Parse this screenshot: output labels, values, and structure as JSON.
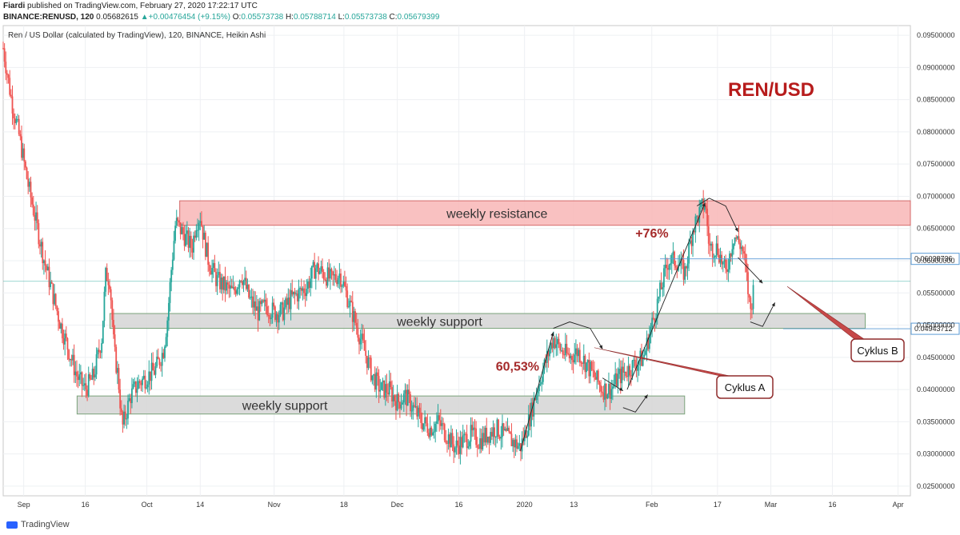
{
  "header": {
    "author": "Fiardi",
    "published_text": "published on TradingView.com, February 27, 2020 17:22:17 UTC",
    "symbol": "BINANCE:RENUSD, 120",
    "price": "0.05682615",
    "change_arrow": "▲",
    "change": "+0.00476454 (+9.15%)",
    "o_label": "O:",
    "o_value": "0.05573738",
    "h_label": "H:",
    "h_value": "0.05788714",
    "l_label": "L:",
    "l_value": "0.05573738",
    "c_label": "C:",
    "c_value": "0.05679399"
  },
  "footer": {
    "brand": "TradingView"
  },
  "colors": {
    "up": "#26a69a",
    "down": "#ef5350",
    "resistance_fill": "#f8b6b6",
    "support_fill": "#d5d5d5",
    "annotation": "#a52a2a",
    "price_line": "#26a69a"
  },
  "chart_data": {
    "type": "candlestick",
    "title": "Ren / US Dollar (calculated by TradingView), 120, BINANCE, Heikin Ashi",
    "big_label": "REN/USD",
    "ylim": [
      0.0235,
      0.0965
    ],
    "y_ticks": [
      "0.09500000",
      "0.09000000",
      "0.08500000",
      "0.08000000",
      "0.07500000",
      "0.07000000",
      "0.06500000",
      "0.06000000",
      "0.05500000",
      "0.05000000",
      "0.04500000",
      "0.04000000",
      "0.03500000",
      "0.03000000",
      "0.02500000"
    ],
    "y_tick_values": [
      0.095,
      0.09,
      0.085,
      0.08,
      0.075,
      0.07,
      0.065,
      0.06,
      0.055,
      0.05,
      0.045,
      0.04,
      0.035,
      0.03,
      0.025
    ],
    "x_ticks": [
      {
        "label": "Sep",
        "day": 0
      },
      {
        "label": "16",
        "day": 15
      },
      {
        "label": "Oct",
        "day": 30
      },
      {
        "label": "14",
        "day": 43
      },
      {
        "label": "Nov",
        "day": 61
      },
      {
        "label": "18",
        "day": 78
      },
      {
        "label": "Dec",
        "day": 91
      },
      {
        "label": "16",
        "day": 106
      },
      {
        "label": "2020",
        "day": 122
      },
      {
        "label": "13",
        "day": 134
      },
      {
        "label": "Feb",
        "day": 153
      },
      {
        "label": "17",
        "day": 169
      },
      {
        "label": "Mar",
        "day": 182
      },
      {
        "label": "16",
        "day": 197
      },
      {
        "label": "Apr",
        "day": 213
      }
    ],
    "x_range_days": [
      -5,
      216
    ],
    "price_markers": [
      {
        "label": "0.06028736",
        "value": 0.06028736
      },
      {
        "label": "0.04943712",
        "value": 0.04943712
      }
    ],
    "current_price": 0.0568,
    "series_close_path": [
      [
        -5,
        0.093
      ],
      [
        -3,
        0.085
      ],
      [
        -1,
        0.079
      ],
      [
        1,
        0.072
      ],
      [
        3,
        0.066
      ],
      [
        5,
        0.06
      ],
      [
        7,
        0.055
      ],
      [
        9,
        0.05
      ],
      [
        11,
        0.046
      ],
      [
        13,
        0.042
      ],
      [
        15,
        0.04
      ],
      [
        17,
        0.042
      ],
      [
        19,
        0.048
      ],
      [
        20,
        0.058
      ],
      [
        21,
        0.057
      ],
      [
        22,
        0.046
      ],
      [
        23,
        0.042
      ],
      [
        24,
        0.034
      ],
      [
        26,
        0.039
      ],
      [
        28,
        0.041
      ],
      [
        30,
        0.042
      ],
      [
        32,
        0.043
      ],
      [
        34,
        0.046
      ],
      [
        35,
        0.051
      ],
      [
        36,
        0.059
      ],
      [
        37,
        0.066
      ],
      [
        38,
        0.065
      ],
      [
        40,
        0.063
      ],
      [
        41,
        0.062
      ],
      [
        42,
        0.066
      ],
      [
        43,
        0.067
      ],
      [
        44,
        0.063
      ],
      [
        45,
        0.06
      ],
      [
        47,
        0.057
      ],
      [
        49,
        0.056
      ],
      [
        51,
        0.055
      ],
      [
        53,
        0.058
      ],
      [
        55,
        0.054
      ],
      [
        57,
        0.052
      ],
      [
        59,
        0.053
      ],
      [
        61,
        0.052
      ],
      [
        63,
        0.052
      ],
      [
        65,
        0.054
      ],
      [
        67,
        0.055
      ],
      [
        69,
        0.056
      ],
      [
        71,
        0.059
      ],
      [
        73,
        0.058
      ],
      [
        75,
        0.057
      ],
      [
        77,
        0.058
      ],
      [
        79,
        0.054
      ],
      [
        81,
        0.05
      ],
      [
        83,
        0.046
      ],
      [
        85,
        0.042
      ],
      [
        87,
        0.04
      ],
      [
        89,
        0.04
      ],
      [
        91,
        0.038
      ],
      [
        93,
        0.039
      ],
      [
        95,
        0.037
      ],
      [
        97,
        0.035
      ],
      [
        99,
        0.034
      ],
      [
        101,
        0.035
      ],
      [
        103,
        0.033
      ],
      [
        105,
        0.031
      ],
      [
        107,
        0.032
      ],
      [
        109,
        0.033
      ],
      [
        111,
        0.032
      ],
      [
        113,
        0.033
      ],
      [
        115,
        0.034
      ],
      [
        117,
        0.033
      ],
      [
        119,
        0.032
      ],
      [
        121,
        0.031
      ],
      [
        123,
        0.035
      ],
      [
        125,
        0.04
      ],
      [
        127,
        0.044
      ],
      [
        129,
        0.048
      ],
      [
        131,
        0.046
      ],
      [
        133,
        0.045
      ],
      [
        135,
        0.046
      ],
      [
        137,
        0.044
      ],
      [
        139,
        0.042
      ],
      [
        141,
        0.04
      ],
      [
        143,
        0.04
      ],
      [
        145,
        0.042
      ],
      [
        147,
        0.043
      ],
      [
        149,
        0.044
      ],
      [
        151,
        0.045
      ],
      [
        153,
        0.05
      ],
      [
        155,
        0.055
      ],
      [
        157,
        0.06
      ],
      [
        159,
        0.06
      ],
      [
        161,
        0.058
      ],
      [
        163,
        0.065
      ],
      [
        165,
        0.068
      ],
      [
        166,
        0.069
      ],
      [
        167,
        0.062
      ],
      [
        169,
        0.062
      ],
      [
        171,
        0.058
      ],
      [
        173,
        0.064
      ],
      [
        175,
        0.062
      ],
      [
        176,
        0.058
      ],
      [
        177,
        0.052
      ],
      [
        178,
        0.0568
      ]
    ],
    "annotations": {
      "resistance_label": "weekly resistance",
      "support_upper_label": "weekly support",
      "support_lower_label": "weekly support",
      "pct1_label": "60,53%",
      "pct2_label": "+76%",
      "cyklus_a_label": "Cyklus A",
      "cyklus_b_label": "Cyklus B"
    },
    "zones": {
      "resistance": {
        "day_from": 38,
        "day_to": 216,
        "top": 0.0693,
        "bottom": 0.0655
      },
      "support_upper": {
        "day_from": 21,
        "day_to": 205,
        "top": 0.0518,
        "bottom": 0.0495
      },
      "support_lower": {
        "day_from": 13,
        "day_to": 161,
        "top": 0.039,
        "bottom": 0.0362
      }
    }
  }
}
